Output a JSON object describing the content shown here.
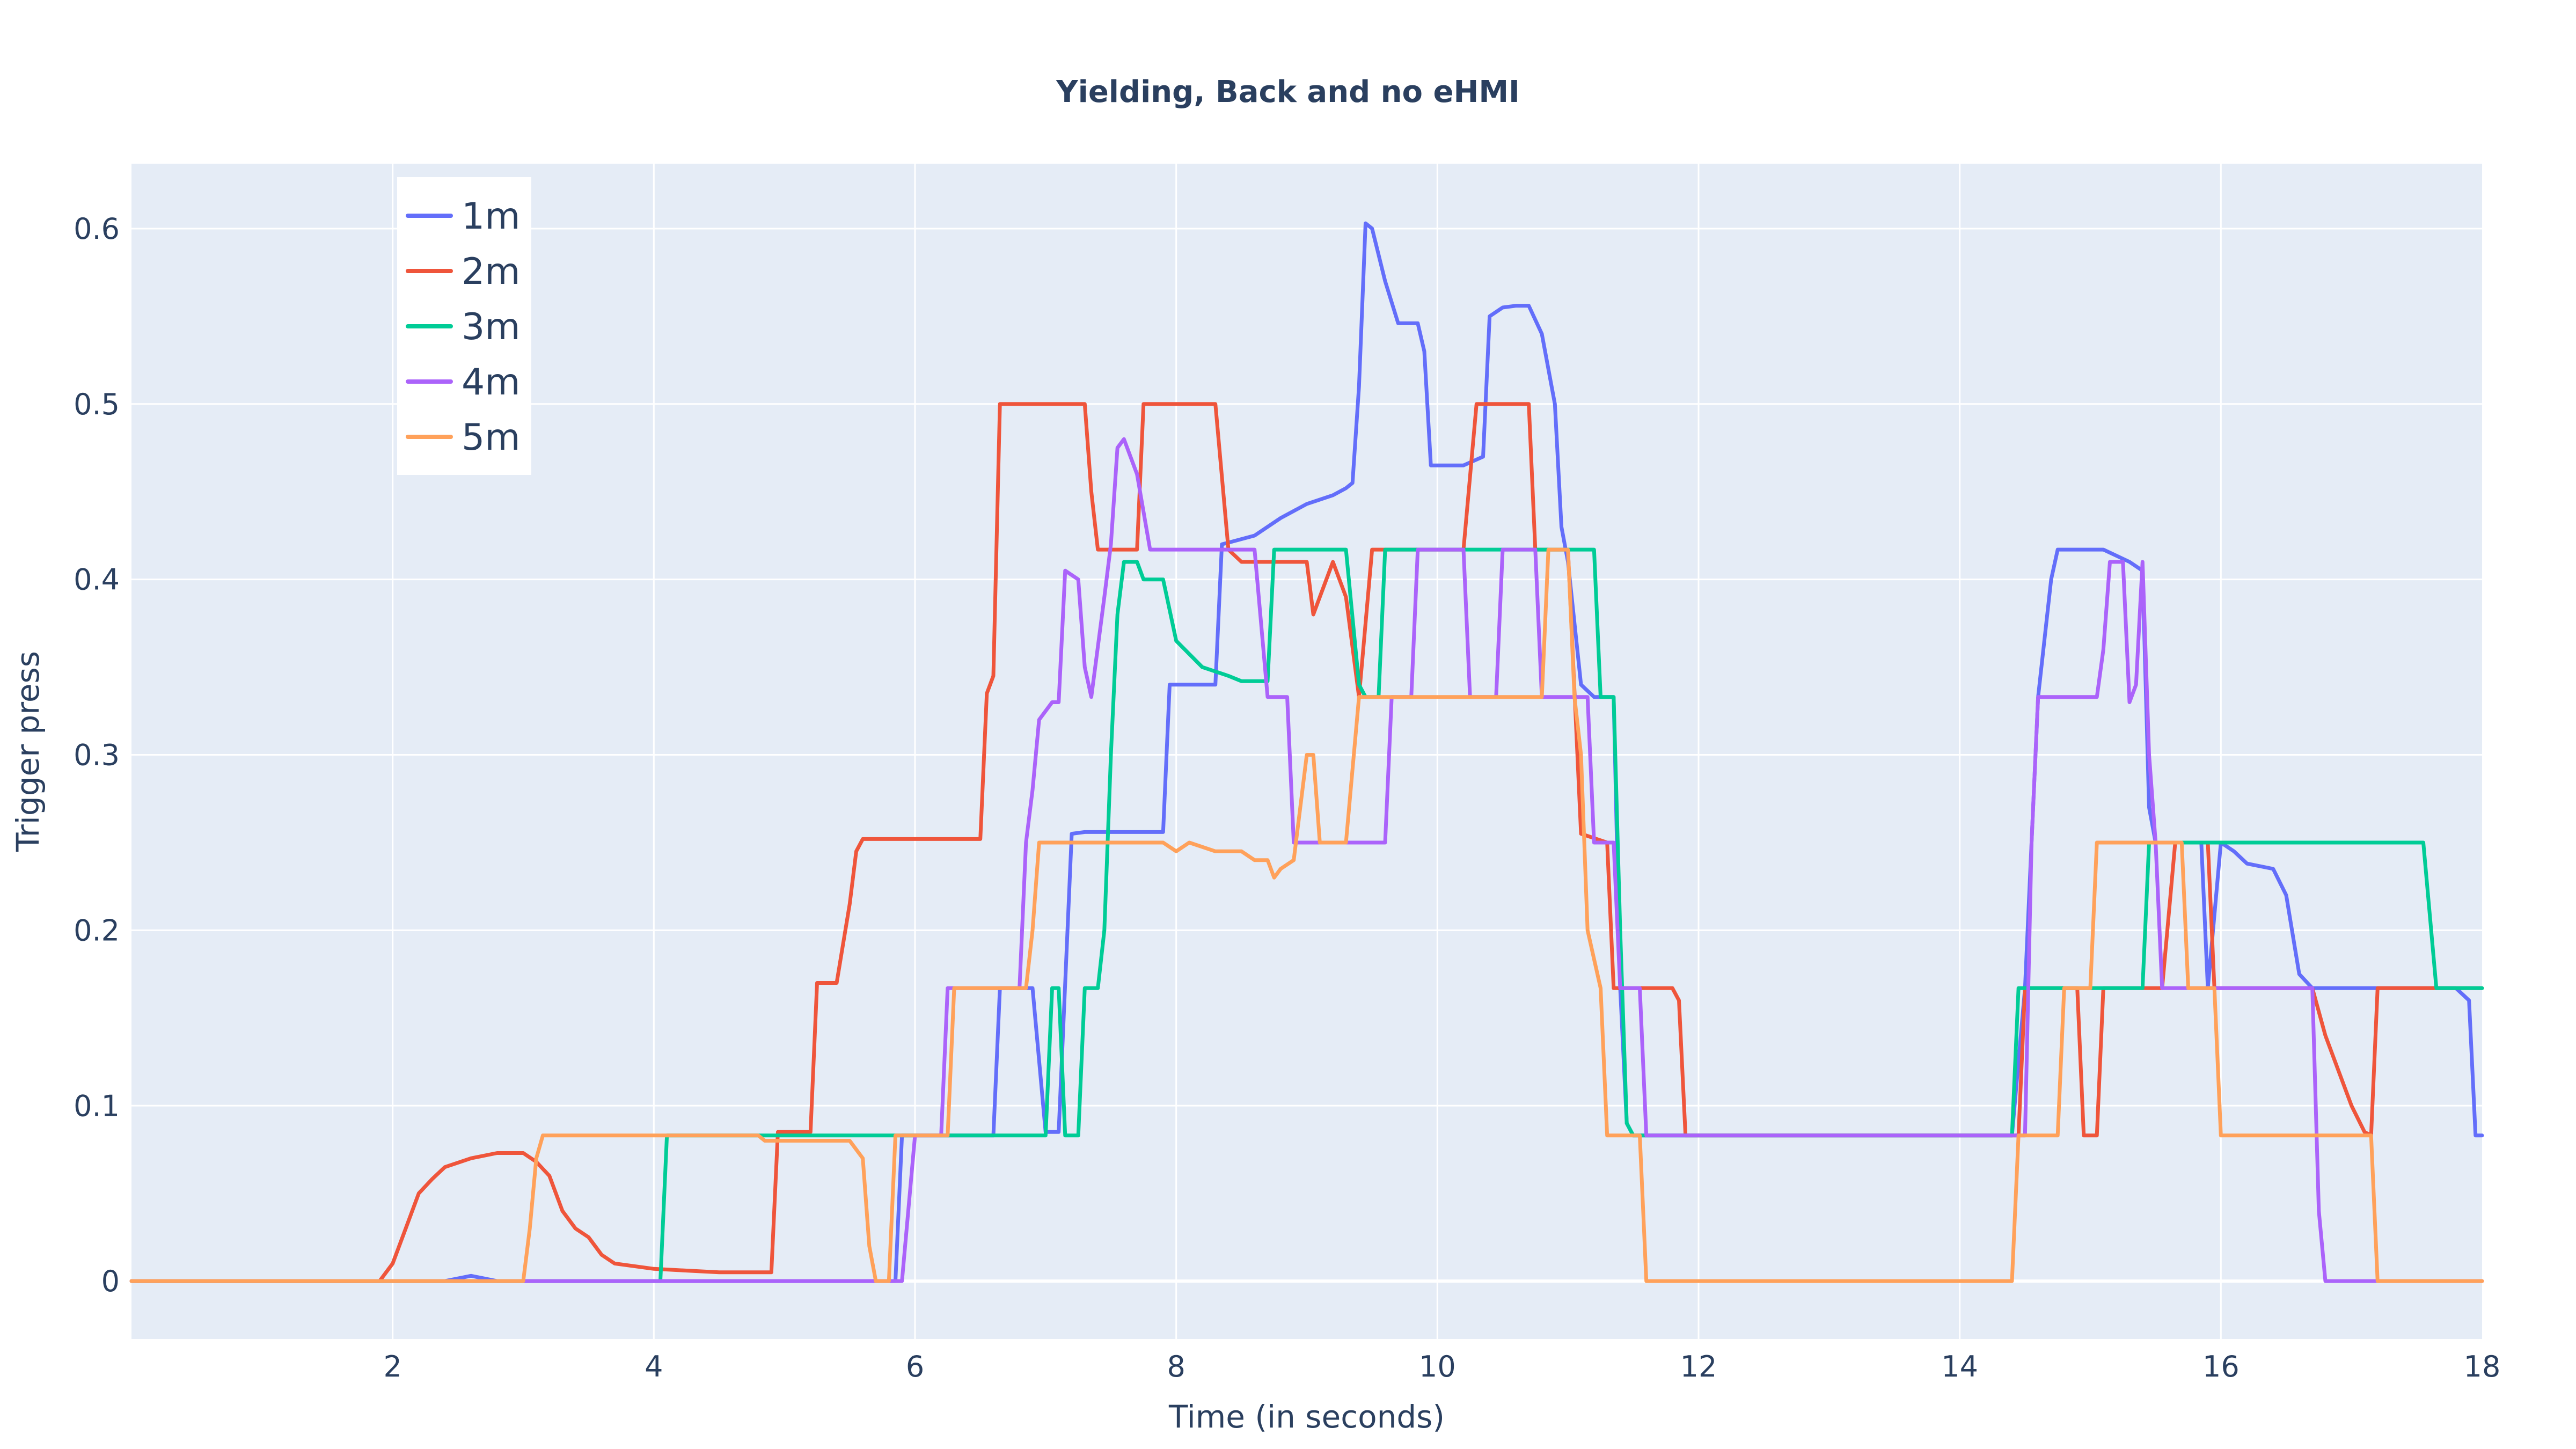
{
  "chart_data": {
    "type": "line",
    "title": "Yielding, Back and no eHMI",
    "xlabel": "Time (in seconds)",
    "ylabel": "Trigger press",
    "xlim": [
      0,
      18
    ],
    "ylim": [
      -0.033,
      0.637
    ],
    "xticks": [
      2,
      4,
      6,
      8,
      10,
      12,
      14,
      16,
      18
    ],
    "xtick_labels": [
      "2",
      "4",
      "6",
      "8",
      "10",
      "12",
      "14",
      "16",
      "18"
    ],
    "yticks": [
      0,
      0.1,
      0.2,
      0.3,
      0.4,
      0.5,
      0.6
    ],
    "ytick_labels": [
      "0",
      "0.1",
      "0.2",
      "0.3",
      "0.4",
      "0.5",
      "0.6"
    ],
    "grid": true,
    "legend_position": "top-left",
    "background_color": "#e5ecf6",
    "series": [
      {
        "name": "1m",
        "color": "#636efa",
        "points": [
          [
            0,
            0
          ],
          [
            2.4,
            0
          ],
          [
            2.6,
            0.003
          ],
          [
            2.8,
            0
          ],
          [
            5.85,
            0
          ],
          [
            5.9,
            0.083
          ],
          [
            6.6,
            0.083
          ],
          [
            6.65,
            0.167
          ],
          [
            6.9,
            0.167
          ],
          [
            7.0,
            0.085
          ],
          [
            7.1,
            0.085
          ],
          [
            7.2,
            0.255
          ],
          [
            7.3,
            0.256
          ],
          [
            7.9,
            0.256
          ],
          [
            7.95,
            0.34
          ],
          [
            8.3,
            0.34
          ],
          [
            8.35,
            0.42
          ],
          [
            8.6,
            0.425
          ],
          [
            8.8,
            0.435
          ],
          [
            9.0,
            0.443
          ],
          [
            9.2,
            0.448
          ],
          [
            9.3,
            0.452
          ],
          [
            9.35,
            0.455
          ],
          [
            9.4,
            0.51
          ],
          [
            9.45,
            0.603
          ],
          [
            9.5,
            0.6
          ],
          [
            9.6,
            0.57
          ],
          [
            9.7,
            0.546
          ],
          [
            9.85,
            0.546
          ],
          [
            9.9,
            0.53
          ],
          [
            9.95,
            0.465
          ],
          [
            10.2,
            0.465
          ],
          [
            10.35,
            0.47
          ],
          [
            10.4,
            0.55
          ],
          [
            10.5,
            0.555
          ],
          [
            10.6,
            0.556
          ],
          [
            10.7,
            0.556
          ],
          [
            10.8,
            0.54
          ],
          [
            10.9,
            0.5
          ],
          [
            10.95,
            0.43
          ],
          [
            11.0,
            0.41
          ],
          [
            11.1,
            0.34
          ],
          [
            11.2,
            0.333
          ],
          [
            11.35,
            0.333
          ],
          [
            11.4,
            0.167
          ],
          [
            11.45,
            0.09
          ],
          [
            11.5,
            0.083
          ],
          [
            14.4,
            0.083
          ],
          [
            14.5,
            0.167
          ],
          [
            14.6,
            0.333
          ],
          [
            14.7,
            0.4
          ],
          [
            14.75,
            0.417
          ],
          [
            15.1,
            0.417
          ],
          [
            15.3,
            0.41
          ],
          [
            15.4,
            0.405
          ],
          [
            15.45,
            0.27
          ],
          [
            15.5,
            0.25
          ],
          [
            15.85,
            0.25
          ],
          [
            15.9,
            0.167
          ],
          [
            16.0,
            0.25
          ],
          [
            16.1,
            0.245
          ],
          [
            16.2,
            0.238
          ],
          [
            16.4,
            0.235
          ],
          [
            16.5,
            0.22
          ],
          [
            16.6,
            0.175
          ],
          [
            16.7,
            0.167
          ],
          [
            17.8,
            0.167
          ],
          [
            17.9,
            0.16
          ],
          [
            17.95,
            0.083
          ],
          [
            18,
            0.083
          ]
        ]
      },
      {
        "name": "2m",
        "color": "#ef553b",
        "points": [
          [
            0,
            0
          ],
          [
            1.9,
            0
          ],
          [
            2.0,
            0.01
          ],
          [
            2.1,
            0.03
          ],
          [
            2.2,
            0.05
          ],
          [
            2.3,
            0.058
          ],
          [
            2.4,
            0.065
          ],
          [
            2.6,
            0.07
          ],
          [
            2.8,
            0.073
          ],
          [
            3.0,
            0.073
          ],
          [
            3.1,
            0.068
          ],
          [
            3.2,
            0.06
          ],
          [
            3.3,
            0.04
          ],
          [
            3.4,
            0.03
          ],
          [
            3.5,
            0.025
          ],
          [
            3.6,
            0.015
          ],
          [
            3.7,
            0.01
          ],
          [
            4.0,
            0.007
          ],
          [
            4.5,
            0.005
          ],
          [
            4.9,
            0.005
          ],
          [
            4.95,
            0.085
          ],
          [
            5.2,
            0.085
          ],
          [
            5.25,
            0.17
          ],
          [
            5.4,
            0.17
          ],
          [
            5.5,
            0.215
          ],
          [
            5.55,
            0.245
          ],
          [
            5.6,
            0.252
          ],
          [
            6.5,
            0.252
          ],
          [
            6.55,
            0.335
          ],
          [
            6.6,
            0.345
          ],
          [
            6.65,
            0.5
          ],
          [
            7.3,
            0.5
          ],
          [
            7.35,
            0.45
          ],
          [
            7.4,
            0.417
          ],
          [
            7.7,
            0.417
          ],
          [
            7.75,
            0.5
          ],
          [
            8.3,
            0.5
          ],
          [
            8.4,
            0.417
          ],
          [
            8.5,
            0.41
          ],
          [
            9.0,
            0.41
          ],
          [
            9.05,
            0.38
          ],
          [
            9.1,
            0.39
          ],
          [
            9.2,
            0.41
          ],
          [
            9.3,
            0.39
          ],
          [
            9.4,
            0.333
          ],
          [
            9.5,
            0.417
          ],
          [
            10.2,
            0.417
          ],
          [
            10.3,
            0.5
          ],
          [
            10.7,
            0.5
          ],
          [
            10.75,
            0.417
          ],
          [
            11.0,
            0.417
          ],
          [
            11.1,
            0.255
          ],
          [
            11.3,
            0.25
          ],
          [
            11.35,
            0.167
          ],
          [
            11.8,
            0.167
          ],
          [
            11.85,
            0.16
          ],
          [
            11.9,
            0.083
          ],
          [
            14.45,
            0.083
          ],
          [
            14.5,
            0.167
          ],
          [
            14.9,
            0.167
          ],
          [
            14.95,
            0.083
          ],
          [
            15.05,
            0.083
          ],
          [
            15.1,
            0.167
          ],
          [
            15.55,
            0.167
          ],
          [
            15.65,
            0.25
          ],
          [
            15.9,
            0.25
          ],
          [
            15.95,
            0.167
          ],
          [
            16.7,
            0.167
          ],
          [
            16.8,
            0.14
          ],
          [
            16.9,
            0.12
          ],
          [
            17.0,
            0.1
          ],
          [
            17.1,
            0.085
          ],
          [
            17.15,
            0.083
          ],
          [
            17.2,
            0.167
          ],
          [
            18,
            0.167
          ]
        ]
      },
      {
        "name": "3m",
        "color": "#00cc96",
        "points": [
          [
            0,
            0
          ],
          [
            4.05,
            0
          ],
          [
            4.1,
            0.083
          ],
          [
            7.0,
            0.083
          ],
          [
            7.05,
            0.167
          ],
          [
            7.1,
            0.167
          ],
          [
            7.15,
            0.083
          ],
          [
            7.25,
            0.083
          ],
          [
            7.3,
            0.167
          ],
          [
            7.4,
            0.167
          ],
          [
            7.45,
            0.2
          ],
          [
            7.5,
            0.3
          ],
          [
            7.55,
            0.38
          ],
          [
            7.6,
            0.41
          ],
          [
            7.7,
            0.41
          ],
          [
            7.75,
            0.4
          ],
          [
            7.9,
            0.4
          ],
          [
            8.0,
            0.365
          ],
          [
            8.2,
            0.35
          ],
          [
            8.4,
            0.345
          ],
          [
            8.5,
            0.342
          ],
          [
            8.7,
            0.342
          ],
          [
            8.75,
            0.417
          ],
          [
            9.1,
            0.417
          ],
          [
            9.3,
            0.417
          ],
          [
            9.4,
            0.34
          ],
          [
            9.45,
            0.333
          ],
          [
            9.55,
            0.333
          ],
          [
            9.6,
            0.417
          ],
          [
            11.2,
            0.417
          ],
          [
            11.25,
            0.333
          ],
          [
            11.35,
            0.333
          ],
          [
            11.4,
            0.2
          ],
          [
            11.45,
            0.09
          ],
          [
            11.5,
            0.083
          ],
          [
            14.4,
            0.083
          ],
          [
            14.45,
            0.167
          ],
          [
            15.4,
            0.167
          ],
          [
            15.45,
            0.25
          ],
          [
            17.55,
            0.25
          ],
          [
            17.65,
            0.167
          ],
          [
            18,
            0.167
          ]
        ]
      },
      {
        "name": "4m",
        "color": "#ab63fa",
        "points": [
          [
            0,
            0
          ],
          [
            5.9,
            0
          ],
          [
            6.0,
            0.083
          ],
          [
            6.2,
            0.083
          ],
          [
            6.25,
            0.167
          ],
          [
            6.8,
            0.167
          ],
          [
            6.85,
            0.25
          ],
          [
            6.9,
            0.28
          ],
          [
            6.95,
            0.32
          ],
          [
            7.05,
            0.33
          ],
          [
            7.1,
            0.33
          ],
          [
            7.15,
            0.405
          ],
          [
            7.25,
            0.4
          ],
          [
            7.3,
            0.35
          ],
          [
            7.35,
            0.333
          ],
          [
            7.45,
            0.39
          ],
          [
            7.5,
            0.42
          ],
          [
            7.55,
            0.475
          ],
          [
            7.6,
            0.48
          ],
          [
            7.7,
            0.46
          ],
          [
            7.8,
            0.417
          ],
          [
            8.3,
            0.417
          ],
          [
            8.6,
            0.417
          ],
          [
            8.7,
            0.333
          ],
          [
            8.85,
            0.333
          ],
          [
            8.9,
            0.25
          ],
          [
            9.6,
            0.25
          ],
          [
            9.65,
            0.333
          ],
          [
            9.8,
            0.333
          ],
          [
            9.85,
            0.417
          ],
          [
            10.2,
            0.417
          ],
          [
            10.25,
            0.333
          ],
          [
            10.45,
            0.333
          ],
          [
            10.5,
            0.417
          ],
          [
            10.75,
            0.417
          ],
          [
            10.8,
            0.333
          ],
          [
            11.15,
            0.333
          ],
          [
            11.2,
            0.25
          ],
          [
            11.35,
            0.25
          ],
          [
            11.4,
            0.167
          ],
          [
            11.55,
            0.167
          ],
          [
            11.6,
            0.083
          ],
          [
            14.5,
            0.083
          ],
          [
            14.55,
            0.25
          ],
          [
            14.6,
            0.333
          ],
          [
            15.05,
            0.333
          ],
          [
            15.1,
            0.36
          ],
          [
            15.15,
            0.41
          ],
          [
            15.25,
            0.41
          ],
          [
            15.3,
            0.33
          ],
          [
            15.35,
            0.34
          ],
          [
            15.4,
            0.41
          ],
          [
            15.45,
            0.3
          ],
          [
            15.5,
            0.25
          ],
          [
            15.55,
            0.167
          ],
          [
            16.7,
            0.167
          ],
          [
            16.75,
            0.04
          ],
          [
            16.8,
            0
          ],
          [
            18,
            0
          ]
        ]
      },
      {
        "name": "5m",
        "color": "#ffa15a",
        "points": [
          [
            0,
            0
          ],
          [
            3.0,
            0
          ],
          [
            3.05,
            0.03
          ],
          [
            3.1,
            0.07
          ],
          [
            3.15,
            0.083
          ],
          [
            4.8,
            0.083
          ],
          [
            4.85,
            0.08
          ],
          [
            5.0,
            0.08
          ],
          [
            5.5,
            0.08
          ],
          [
            5.6,
            0.07
          ],
          [
            5.65,
            0.02
          ],
          [
            5.7,
            0
          ],
          [
            5.8,
            0
          ],
          [
            5.85,
            0.083
          ],
          [
            6.25,
            0.083
          ],
          [
            6.3,
            0.167
          ],
          [
            6.85,
            0.167
          ],
          [
            6.9,
            0.2
          ],
          [
            6.95,
            0.25
          ],
          [
            7.9,
            0.25
          ],
          [
            8.0,
            0.245
          ],
          [
            8.1,
            0.25
          ],
          [
            8.3,
            0.245
          ],
          [
            8.5,
            0.245
          ],
          [
            8.6,
            0.24
          ],
          [
            8.7,
            0.24
          ],
          [
            8.75,
            0.23
          ],
          [
            8.8,
            0.235
          ],
          [
            8.9,
            0.24
          ],
          [
            9.0,
            0.3
          ],
          [
            9.05,
            0.3
          ],
          [
            9.1,
            0.25
          ],
          [
            9.3,
            0.25
          ],
          [
            9.4,
            0.333
          ],
          [
            10.8,
            0.333
          ],
          [
            10.85,
            0.417
          ],
          [
            11.0,
            0.417
          ],
          [
            11.05,
            0.333
          ],
          [
            11.1,
            0.3
          ],
          [
            11.15,
            0.2
          ],
          [
            11.25,
            0.167
          ],
          [
            11.3,
            0.083
          ],
          [
            11.55,
            0.083
          ],
          [
            11.6,
            0
          ],
          [
            14.4,
            0
          ],
          [
            14.45,
            0.083
          ],
          [
            14.75,
            0.083
          ],
          [
            14.8,
            0.167
          ],
          [
            15.0,
            0.167
          ],
          [
            15.05,
            0.25
          ],
          [
            15.7,
            0.25
          ],
          [
            15.75,
            0.167
          ],
          [
            15.95,
            0.167
          ],
          [
            16.0,
            0.083
          ],
          [
            17.15,
            0.083
          ],
          [
            17.2,
            0
          ],
          [
            18,
            0
          ]
        ]
      }
    ]
  }
}
